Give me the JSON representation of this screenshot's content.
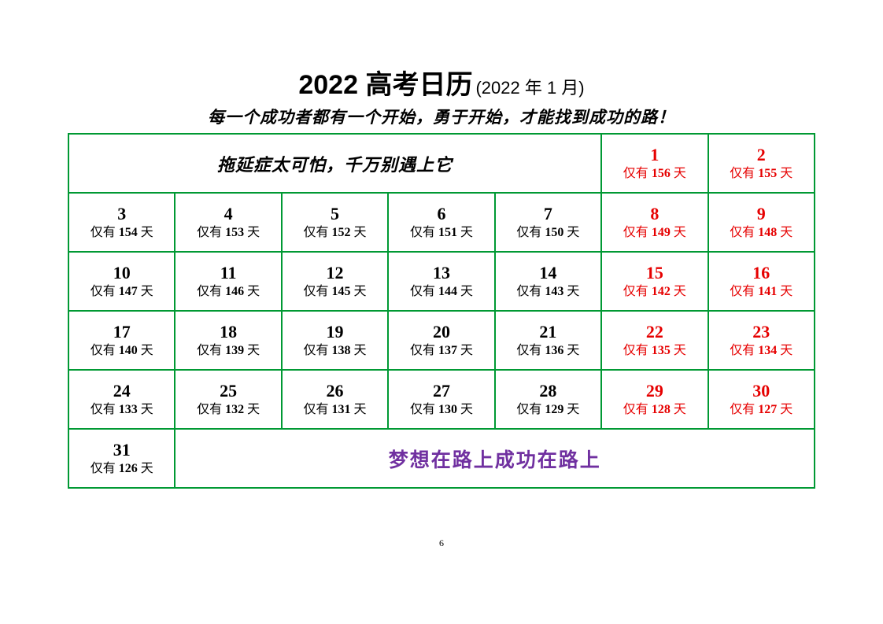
{
  "header": {
    "title_main": "2022 高考日历",
    "title_sub": "(2022 年 1 月)"
  },
  "subtitle": "每一个成功者都有一个开始，勇于开始，才能找到成功的路！",
  "top_message": "拖延症太可怕，千万别遇上它",
  "footer_message": "梦想在路上成功在路上",
  "page_number": "6",
  "day_label_prefix": "仅有",
  "day_label_suffix": "天",
  "colors": {
    "border": "#009933",
    "weekend": "#e60000",
    "weekday": "#000000",
    "footer_text": "#7030a0",
    "background": "#ffffff"
  },
  "days": [
    {
      "num": "1",
      "remain": "156",
      "weekend": true
    },
    {
      "num": "2",
      "remain": "155",
      "weekend": true
    },
    {
      "num": "3",
      "remain": "154",
      "weekend": false
    },
    {
      "num": "4",
      "remain": "153",
      "weekend": false
    },
    {
      "num": "5",
      "remain": "152",
      "weekend": false
    },
    {
      "num": "6",
      "remain": "151",
      "weekend": false
    },
    {
      "num": "7",
      "remain": "150",
      "weekend": false
    },
    {
      "num": "8",
      "remain": "149",
      "weekend": true
    },
    {
      "num": "9",
      "remain": "148",
      "weekend": true
    },
    {
      "num": "10",
      "remain": "147",
      "weekend": false
    },
    {
      "num": "11",
      "remain": "146",
      "weekend": false
    },
    {
      "num": "12",
      "remain": "145",
      "weekend": false
    },
    {
      "num": "13",
      "remain": "144",
      "weekend": false
    },
    {
      "num": "14",
      "remain": "143",
      "weekend": false
    },
    {
      "num": "15",
      "remain": "142",
      "weekend": true
    },
    {
      "num": "16",
      "remain": "141",
      "weekend": true
    },
    {
      "num": "17",
      "remain": "140",
      "weekend": false
    },
    {
      "num": "18",
      "remain": "139",
      "weekend": false
    },
    {
      "num": "19",
      "remain": "138",
      "weekend": false
    },
    {
      "num": "20",
      "remain": "137",
      "weekend": false
    },
    {
      "num": "21",
      "remain": "136",
      "weekend": false
    },
    {
      "num": "22",
      "remain": "135",
      "weekend": true
    },
    {
      "num": "23",
      "remain": "134",
      "weekend": true
    },
    {
      "num": "24",
      "remain": "133",
      "weekend": false
    },
    {
      "num": "25",
      "remain": "132",
      "weekend": false
    },
    {
      "num": "26",
      "remain": "131",
      "weekend": false
    },
    {
      "num": "27",
      "remain": "130",
      "weekend": false
    },
    {
      "num": "28",
      "remain": "129",
      "weekend": false
    },
    {
      "num": "29",
      "remain": "128",
      "weekend": true
    },
    {
      "num": "30",
      "remain": "127",
      "weekend": true
    },
    {
      "num": "31",
      "remain": "126",
      "weekend": false
    }
  ]
}
